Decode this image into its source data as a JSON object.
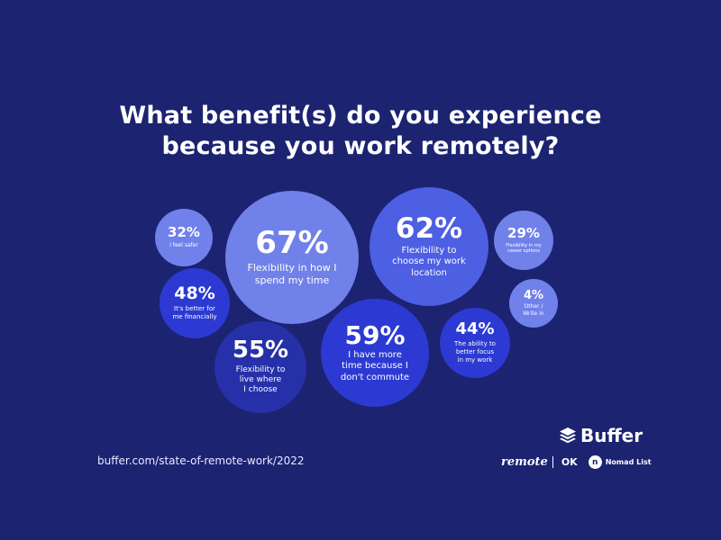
{
  "chart_data": {
    "type": "bubble",
    "title": "What benefit(s) do you experience because you work remotely?",
    "title_lines": [
      "What benefit(s) do you experience",
      "because you work remotely?"
    ],
    "unit": "%",
    "items": [
      {
        "value": 67,
        "label": "67%",
        "desc": "Flexibility in how I spend my time",
        "desc_lines": [
          "Flexibility in how I",
          "spend my time"
        ]
      },
      {
        "value": 62,
        "label": "62%",
        "desc": "Flexibility to choose my work location",
        "desc_lines": [
          "Flexibility to",
          "choose my work",
          "location"
        ]
      },
      {
        "value": 59,
        "label": "59%",
        "desc": "I have more time because I don't commute",
        "desc_lines": [
          "I have more",
          "time because I",
          "don't commute"
        ]
      },
      {
        "value": 55,
        "label": "55%",
        "desc": "Flexibility to live where I choose",
        "desc_lines": [
          "Flexibility to",
          "live where",
          "I choose"
        ]
      },
      {
        "value": 48,
        "label": "48%",
        "desc": "It's better for me financially",
        "desc_lines": [
          "It's better for",
          "me financially"
        ]
      },
      {
        "value": 44,
        "label": "44%",
        "desc": "The ability to better focus in my work",
        "desc_lines": [
          "The ability to",
          "better focus",
          "in my work"
        ]
      },
      {
        "value": 32,
        "label": "32%",
        "desc": "I feel safer",
        "desc_lines": [
          "I feel safer"
        ]
      },
      {
        "value": 29,
        "label": "29%",
        "desc": "Flexibility in my career options",
        "desc_lines": [
          "Flexibility in my",
          "career options"
        ]
      },
      {
        "value": 4,
        "label": "4%",
        "desc": "Other / Write in",
        "desc_lines": [
          "Other /",
          "Write in"
        ]
      }
    ],
    "colors": {
      "background": "#1c2371",
      "light": "#7081ea",
      "mid": "#4d5fe3",
      "royal": "#2c3ad3",
      "navy": "#2631a9"
    }
  },
  "footer": {
    "source_url": "buffer.com/state-of-remote-work/2022",
    "brand": "Buffer",
    "partner_remote": "remote",
    "partner_ok": "OK",
    "partner_nomad": "Nomad List"
  }
}
